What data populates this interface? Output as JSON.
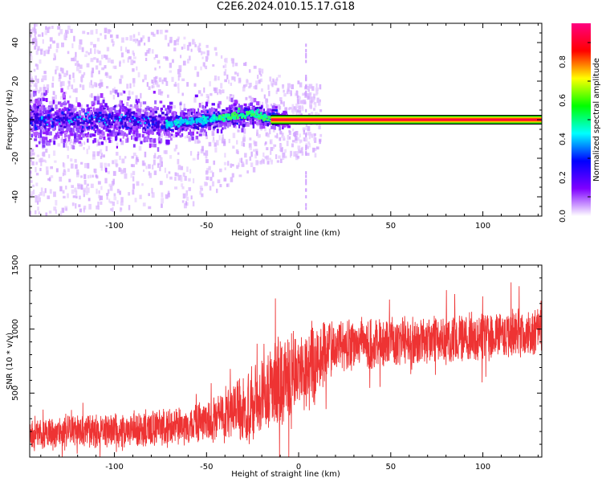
{
  "title": "C2E6.2024.010.15.17.G18",
  "chart_data": [
    {
      "type": "heatmap",
      "title": "C2E6.2024.010.15.17.G18",
      "xlabel": "Height of straight line (km)",
      "ylabel": "Frequency (Hz)",
      "xlim": [
        -146,
        132
      ],
      "ylim": [
        -50,
        50
      ],
      "xticks": [
        -100,
        -50,
        0,
        50,
        100
      ],
      "yticks": [
        -40,
        -20,
        0,
        20,
        40
      ],
      "colorbar": {
        "label": "Normalized spectral amplitude",
        "range": [
          0,
          1
        ],
        "ticks": [
          0.0,
          0.2,
          0.4,
          0.6,
          0.8
        ],
        "colors": [
          "#ffffff",
          "#7f00ff",
          "#0000ff",
          "#00ffff",
          "#00ff00",
          "#ffff00",
          "#ff0000",
          "#ff0080"
        ]
      },
      "features": {
        "spectral_line_from_x": -15,
        "spectral_line_freq": 0,
        "noise_region_x": [
          -146,
          12
        ],
        "ridge": [
          [
            -146,
            0
          ],
          [
            -100,
            0
          ],
          [
            -70,
            -2
          ],
          [
            -50,
            0
          ],
          [
            -35,
            2
          ],
          [
            -25,
            3
          ],
          [
            -15,
            1
          ],
          [
            -10,
            0
          ]
        ]
      }
    },
    {
      "type": "line",
      "xlabel": "Height of straight line (km)",
      "ylabel": "SNR (10 * v/v)",
      "xlim": [
        -146,
        132
      ],
      "ylim": [
        0,
        1500
      ],
      "xticks": [
        -100,
        -50,
        0,
        50,
        100
      ],
      "yticks": [
        500,
        1000,
        1500
      ],
      "series": [
        {
          "color": "#ee3333",
          "envelope": {
            "x": [
              -146,
              -100,
              -70,
              -50,
              -40,
              -30,
              -20,
              -10,
              0,
              10,
              15,
              20,
              30,
              50,
              80,
              100,
              132
            ],
            "mean": [
              180,
              200,
              240,
              280,
              320,
              370,
              470,
              580,
              680,
              760,
              830,
              860,
              880,
              900,
              920,
              950,
              980
            ],
            "spread": [
              120,
              130,
              140,
              150,
              200,
              260,
              300,
              330,
              330,
              320,
              260,
              220,
              200,
              190,
              190,
              190,
              190
            ]
          }
        }
      ]
    }
  ]
}
